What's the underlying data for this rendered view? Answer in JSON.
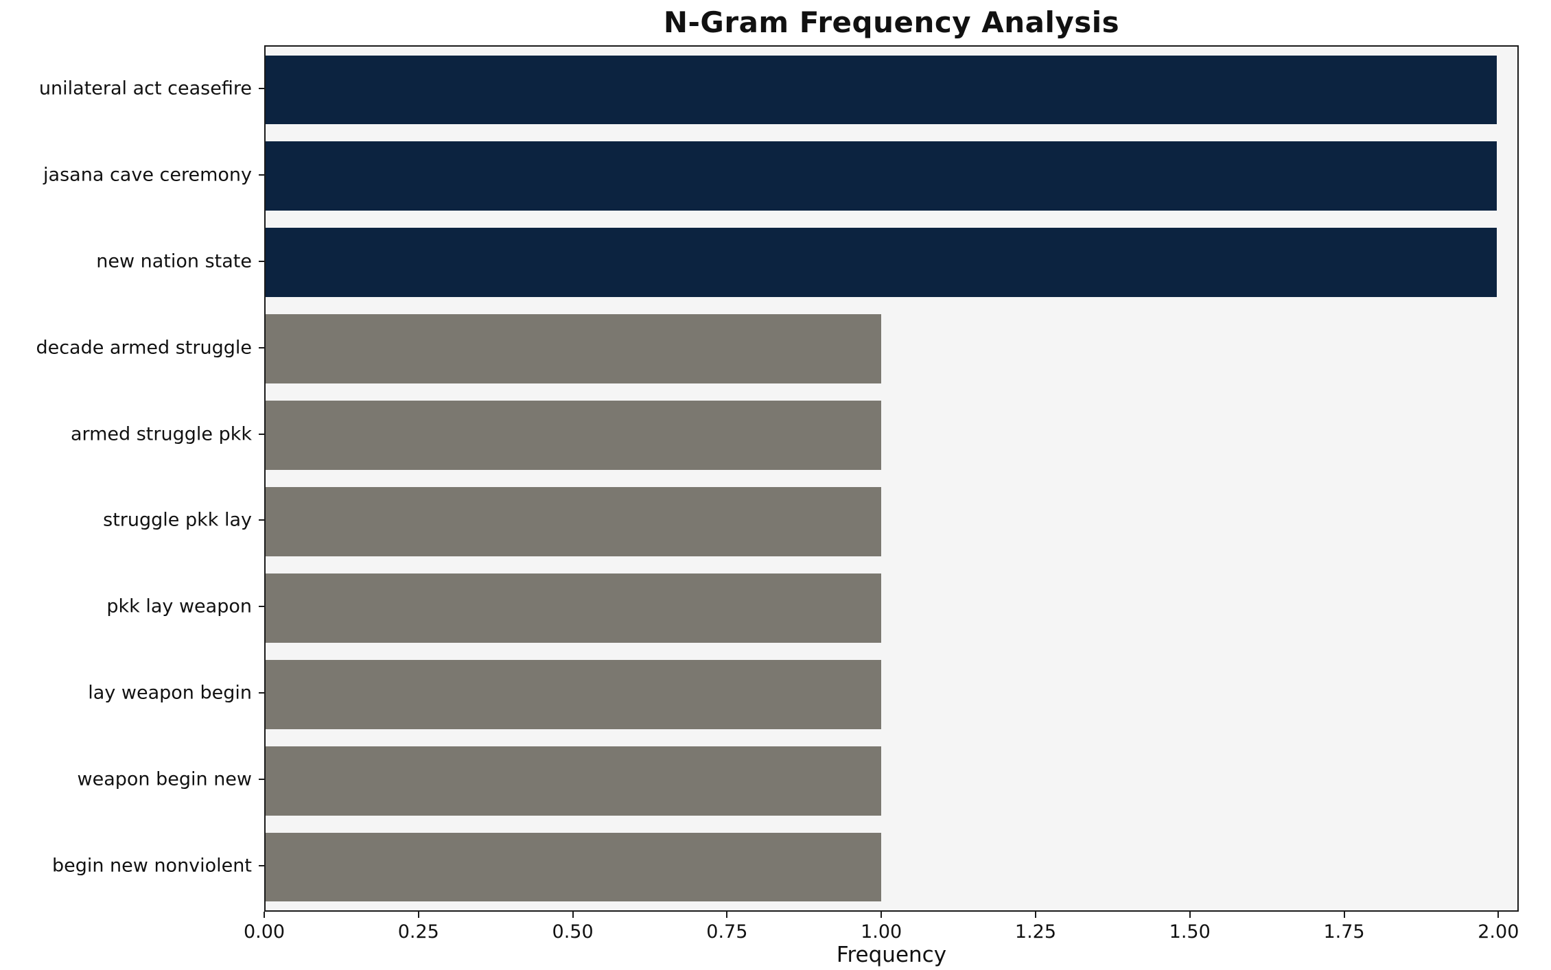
{
  "chart_data": {
    "type": "bar",
    "orientation": "horizontal",
    "title": "N-Gram Frequency Analysis",
    "xlabel": "Frequency",
    "ylabel": "",
    "categories": [
      "unilateral act ceasefire",
      "jasana cave ceremony",
      "new nation state",
      "decade armed struggle",
      "armed struggle pkk",
      "struggle pkk lay",
      "pkk lay weapon",
      "lay weapon begin",
      "weapon begin new",
      "begin new nonviolent"
    ],
    "values": [
      2,
      2,
      2,
      1,
      1,
      1,
      1,
      1,
      1,
      1
    ],
    "bar_colors": [
      "#0c2340",
      "#0c2340",
      "#0c2340",
      "#7b7870",
      "#7b7870",
      "#7b7870",
      "#7b7870",
      "#7b7870",
      "#7b7870",
      "#7b7870"
    ],
    "xlim": [
      0,
      2.033
    ],
    "xticks": [
      0,
      0.25,
      0.5,
      0.75,
      1,
      1.25,
      1.5,
      1.75,
      2
    ],
    "xtick_labels": [
      "0.00",
      "0.25",
      "0.50",
      "0.75",
      "1.00",
      "1.25",
      "1.50",
      "1.75",
      "2.00"
    ],
    "bar_band_fraction": 0.8,
    "plot_background": "#f5f5f5",
    "grid": false,
    "legend": null
  }
}
